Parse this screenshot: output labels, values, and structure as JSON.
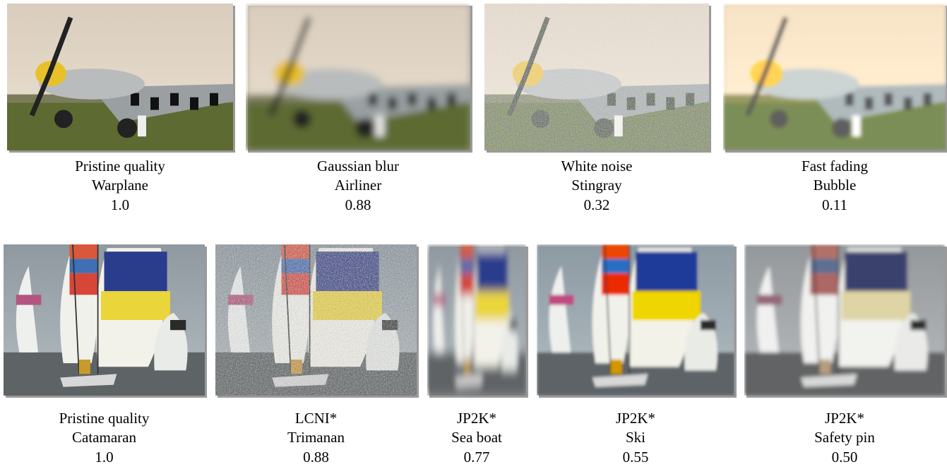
{
  "figure": {
    "rows": [
      {
        "items": [
          {
            "distortion": "Pristine quality",
            "label": "Warplane",
            "score": "1.0"
          },
          {
            "distortion": "Gaussian blur",
            "label": "Airliner",
            "score": "0.88"
          },
          {
            "distortion": "White noise",
            "label": "Stingray",
            "score": "0.32"
          },
          {
            "distortion": "Fast fading",
            "label": "Bubble",
            "score": "0.11"
          }
        ]
      },
      {
        "items": [
          {
            "distortion": "Pristine quality",
            "label": "Catamaran",
            "score": "1.0"
          },
          {
            "distortion": "LCNI*",
            "label": "Trimanan",
            "score": "0.88"
          },
          {
            "distortion": "JP2K*",
            "label": "Sea boat",
            "score": "0.77"
          },
          {
            "distortion": "JP2K*",
            "label": "Ski",
            "score": "0.55"
          },
          {
            "distortion": "JP2K*",
            "label": "Safety pin",
            "score": "0.50"
          }
        ]
      }
    ]
  }
}
